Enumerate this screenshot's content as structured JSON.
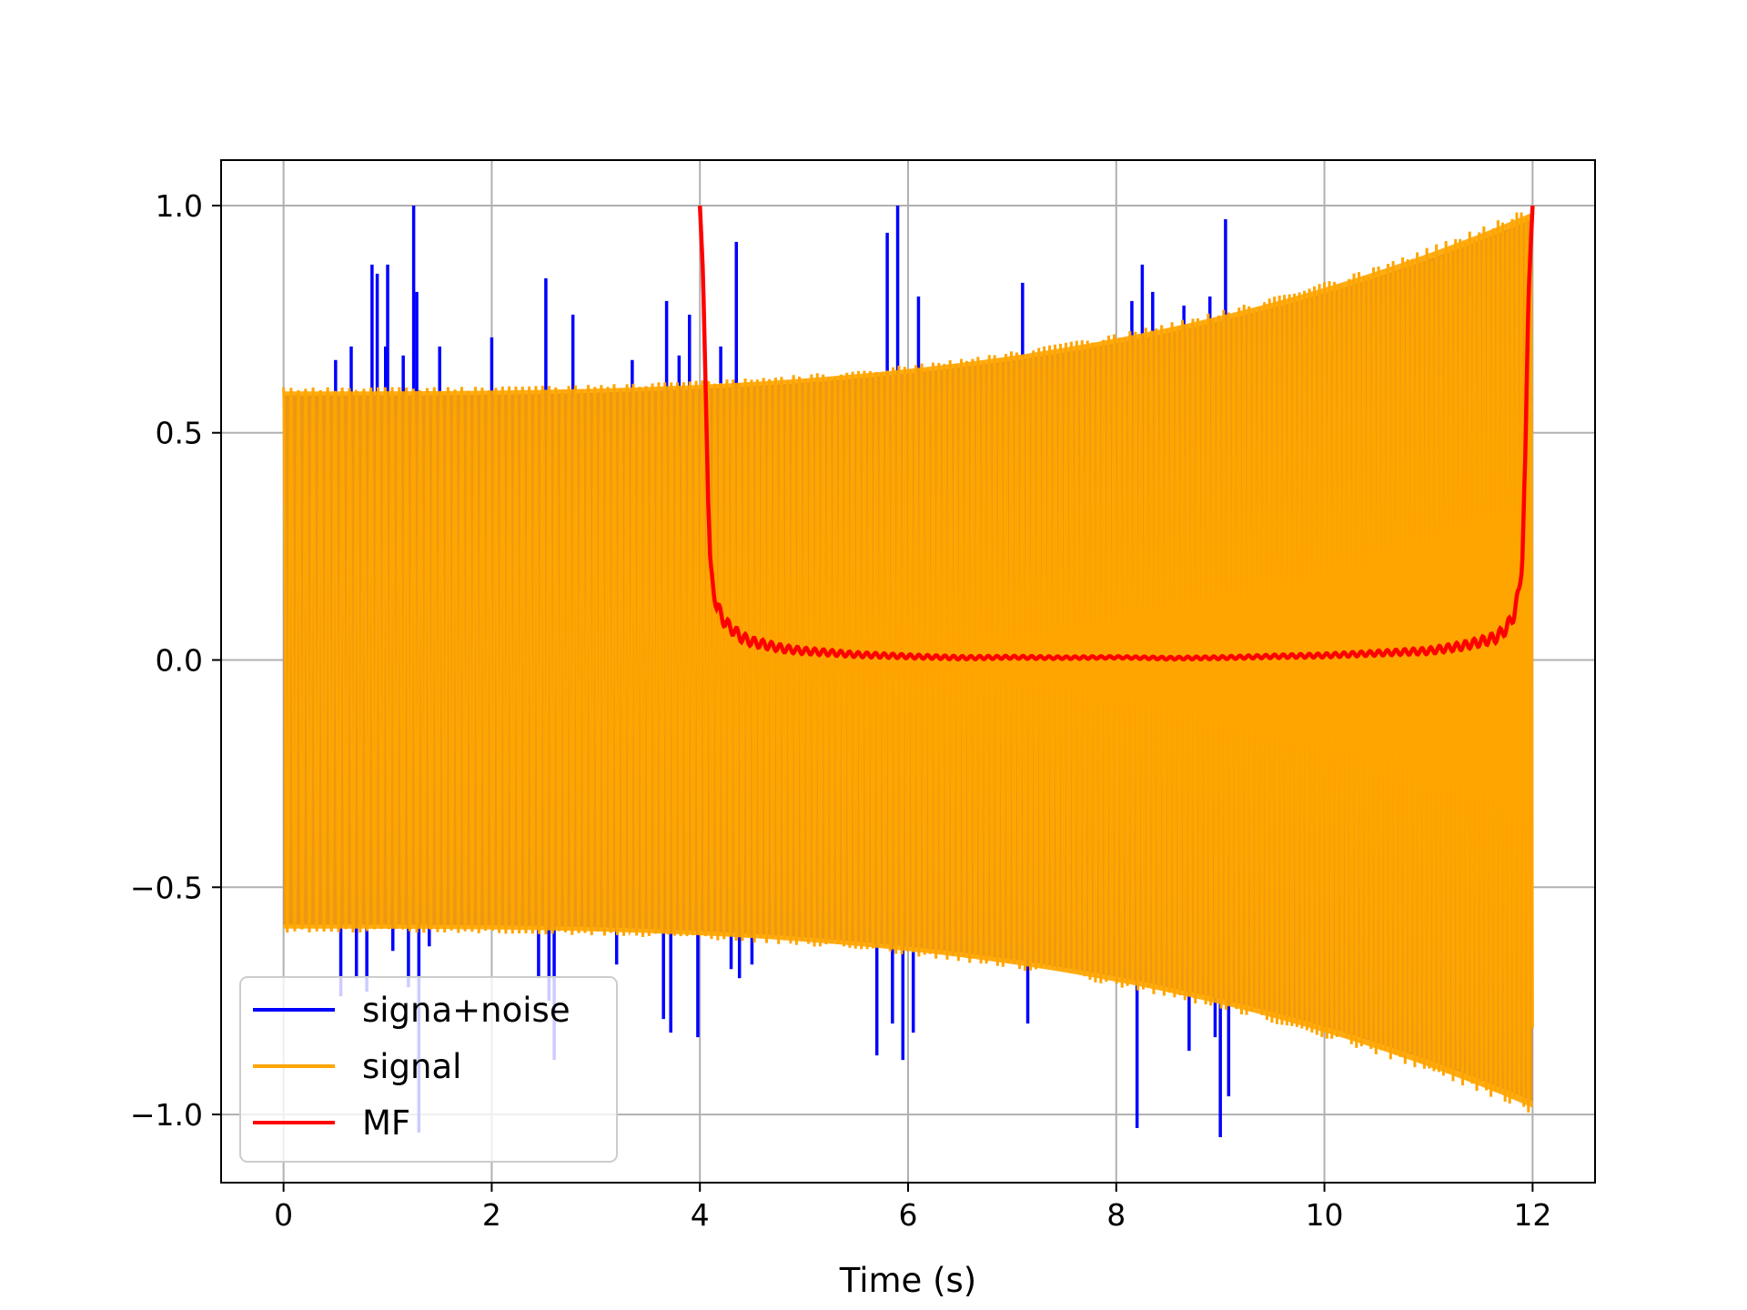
{
  "chart_data": {
    "type": "line",
    "title": "",
    "xlabel": "Time (s)",
    "ylabel": "",
    "xlim": [
      -0.6,
      12.6
    ],
    "ylim": [
      -1.15,
      1.1
    ],
    "xticks": [
      0,
      2,
      4,
      6,
      8,
      10,
      12
    ],
    "xtick_labels": [
      "0",
      "2",
      "4",
      "6",
      "8",
      "10",
      "12"
    ],
    "yticks": [
      -1.0,
      -0.5,
      0.0,
      0.5,
      1.0
    ],
    "ytick_labels": [
      "−1.0",
      "−0.5",
      "0.0",
      "0.5",
      "1.0"
    ],
    "grid": true,
    "legend_position": "lower-left",
    "series": [
      {
        "name": "signa+noise",
        "color": "#0000ff",
        "x_range": [
          0,
          12
        ],
        "band_envelope_start": 0.6,
        "band_envelope_end": 1.0,
        "spikes": [
          {
            "x": 0.5,
            "y": 0.66
          },
          {
            "x": 0.55,
            "y": -0.74
          },
          {
            "x": 0.65,
            "y": 0.69
          },
          {
            "x": 0.7,
            "y": -0.7
          },
          {
            "x": 0.8,
            "y": -0.73
          },
          {
            "x": 0.85,
            "y": 0.87
          },
          {
            "x": 0.9,
            "y": 0.85
          },
          {
            "x": 0.98,
            "y": 0.69
          },
          {
            "x": 1.0,
            "y": 0.87
          },
          {
            "x": 1.05,
            "y": -0.64
          },
          {
            "x": 1.15,
            "y": 0.67
          },
          {
            "x": 1.2,
            "y": -0.72
          },
          {
            "x": 1.25,
            "y": 1.0
          },
          {
            "x": 1.28,
            "y": 0.81
          },
          {
            "x": 1.3,
            "y": -1.04
          },
          {
            "x": 1.4,
            "y": -0.63
          },
          {
            "x": 1.5,
            "y": 0.69
          },
          {
            "x": 2.0,
            "y": 0.71
          },
          {
            "x": 2.45,
            "y": -0.7
          },
          {
            "x": 2.52,
            "y": 0.84
          },
          {
            "x": 2.55,
            "y": -0.75
          },
          {
            "x": 2.6,
            "y": -0.88
          },
          {
            "x": 2.78,
            "y": 0.76
          },
          {
            "x": 3.2,
            "y": -0.67
          },
          {
            "x": 3.35,
            "y": 0.66
          },
          {
            "x": 3.65,
            "y": -0.79
          },
          {
            "x": 3.68,
            "y": 0.79
          },
          {
            "x": 3.72,
            "y": -0.82
          },
          {
            "x": 3.8,
            "y": 0.67
          },
          {
            "x": 3.9,
            "y": 0.76
          },
          {
            "x": 3.98,
            "y": -0.83
          },
          {
            "x": 4.2,
            "y": 0.69
          },
          {
            "x": 4.3,
            "y": -0.68
          },
          {
            "x": 4.35,
            "y": 0.92
          },
          {
            "x": 4.38,
            "y": -0.7
          },
          {
            "x": 4.5,
            "y": -0.67
          },
          {
            "x": 5.7,
            "y": -0.87
          },
          {
            "x": 5.8,
            "y": 0.94
          },
          {
            "x": 5.85,
            "y": -0.8
          },
          {
            "x": 5.9,
            "y": 1.0
          },
          {
            "x": 5.95,
            "y": -0.88
          },
          {
            "x": 6.05,
            "y": -0.82
          },
          {
            "x": 6.1,
            "y": 0.8
          },
          {
            "x": 7.1,
            "y": 0.83
          },
          {
            "x": 7.15,
            "y": -0.8
          },
          {
            "x": 8.15,
            "y": 0.79
          },
          {
            "x": 8.2,
            "y": -1.03
          },
          {
            "x": 8.25,
            "y": 0.87
          },
          {
            "x": 8.35,
            "y": 0.81
          },
          {
            "x": 8.65,
            "y": 0.78
          },
          {
            "x": 8.7,
            "y": -0.86
          },
          {
            "x": 8.9,
            "y": 0.8
          },
          {
            "x": 8.95,
            "y": -0.83
          },
          {
            "x": 9.0,
            "y": -1.05
          },
          {
            "x": 9.05,
            "y": 0.97
          },
          {
            "x": 9.08,
            "y": -0.96
          }
        ]
      },
      {
        "name": "signal",
        "color": "#ffa500",
        "x_range": [
          0,
          12
        ],
        "envelope_start": 0.6,
        "envelope_end": 1.0
      },
      {
        "name": "MF",
        "color": "#ff0000",
        "x": [
          4.0,
          4.03,
          4.06,
          4.08,
          4.1,
          4.13,
          4.16,
          4.2,
          4.25,
          4.3,
          4.4,
          4.5,
          4.6,
          4.8,
          5.0,
          5.5,
          6.0,
          6.5,
          7.0,
          7.5,
          8.0,
          8.5,
          9.0,
          9.5,
          10.0,
          10.5,
          11.0,
          11.3,
          11.5,
          11.65,
          11.75,
          11.82,
          11.87,
          11.9,
          11.93,
          11.96,
          12.0
        ],
        "y": [
          1.0,
          0.85,
          0.55,
          0.35,
          0.2,
          0.16,
          0.12,
          0.1,
          0.08,
          0.07,
          0.05,
          0.04,
          0.035,
          0.025,
          0.02,
          0.012,
          0.008,
          0.005,
          0.006,
          0.005,
          0.006,
          0.004,
          0.005,
          0.008,
          0.01,
          0.015,
          0.02,
          0.03,
          0.04,
          0.05,
          0.07,
          0.1,
          0.15,
          0.22,
          0.45,
          0.8,
          1.0
        ]
      }
    ]
  }
}
